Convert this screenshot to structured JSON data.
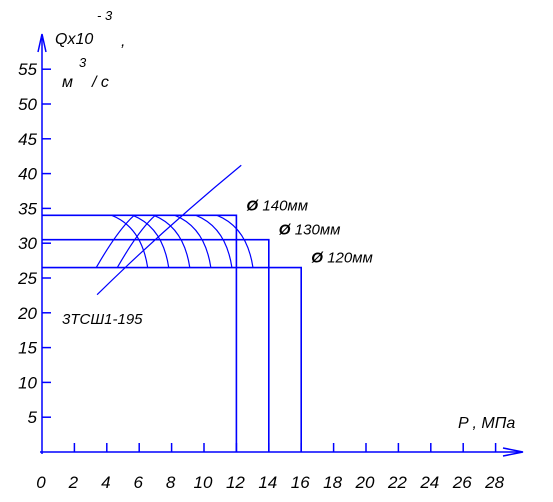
{
  "chart_data": {
    "type": "line",
    "title": "",
    "ylabel": {
      "main": "Qx10",
      "exp": "- 3",
      "comma": ",",
      "unit_m": "м",
      "unit_exp": "3",
      "unit_rest": "/ с"
    },
    "xlabel": "P , МПа",
    "xlim": [
      0,
      29
    ],
    "ylim": [
      0,
      58
    ],
    "x_ticks": [
      0,
      2,
      4,
      6,
      8,
      10,
      12,
      14,
      16,
      18,
      20,
      22,
      24,
      26,
      28
    ],
    "y_ticks": [
      5,
      10,
      15,
      20,
      25,
      30,
      35,
      40,
      45,
      50,
      55
    ],
    "grid": false,
    "series": [
      {
        "name": "140мм",
        "label_prefix": "Ø",
        "label": "140мм",
        "flow": 34.0,
        "pressure": 12.0
      },
      {
        "name": "130мм",
        "label_prefix": "Ø",
        "label": "130мм",
        "flow": 30.5,
        "pressure": 14.0
      },
      {
        "name": "120мм",
        "label_prefix": "Ø",
        "label": "120мм",
        "flow": 26.5,
        "pressure": 16.0
      }
    ],
    "annotation": "3ТСШ1-195",
    "colors": {
      "lines": "#0000ff",
      "text": "#000000"
    }
  }
}
